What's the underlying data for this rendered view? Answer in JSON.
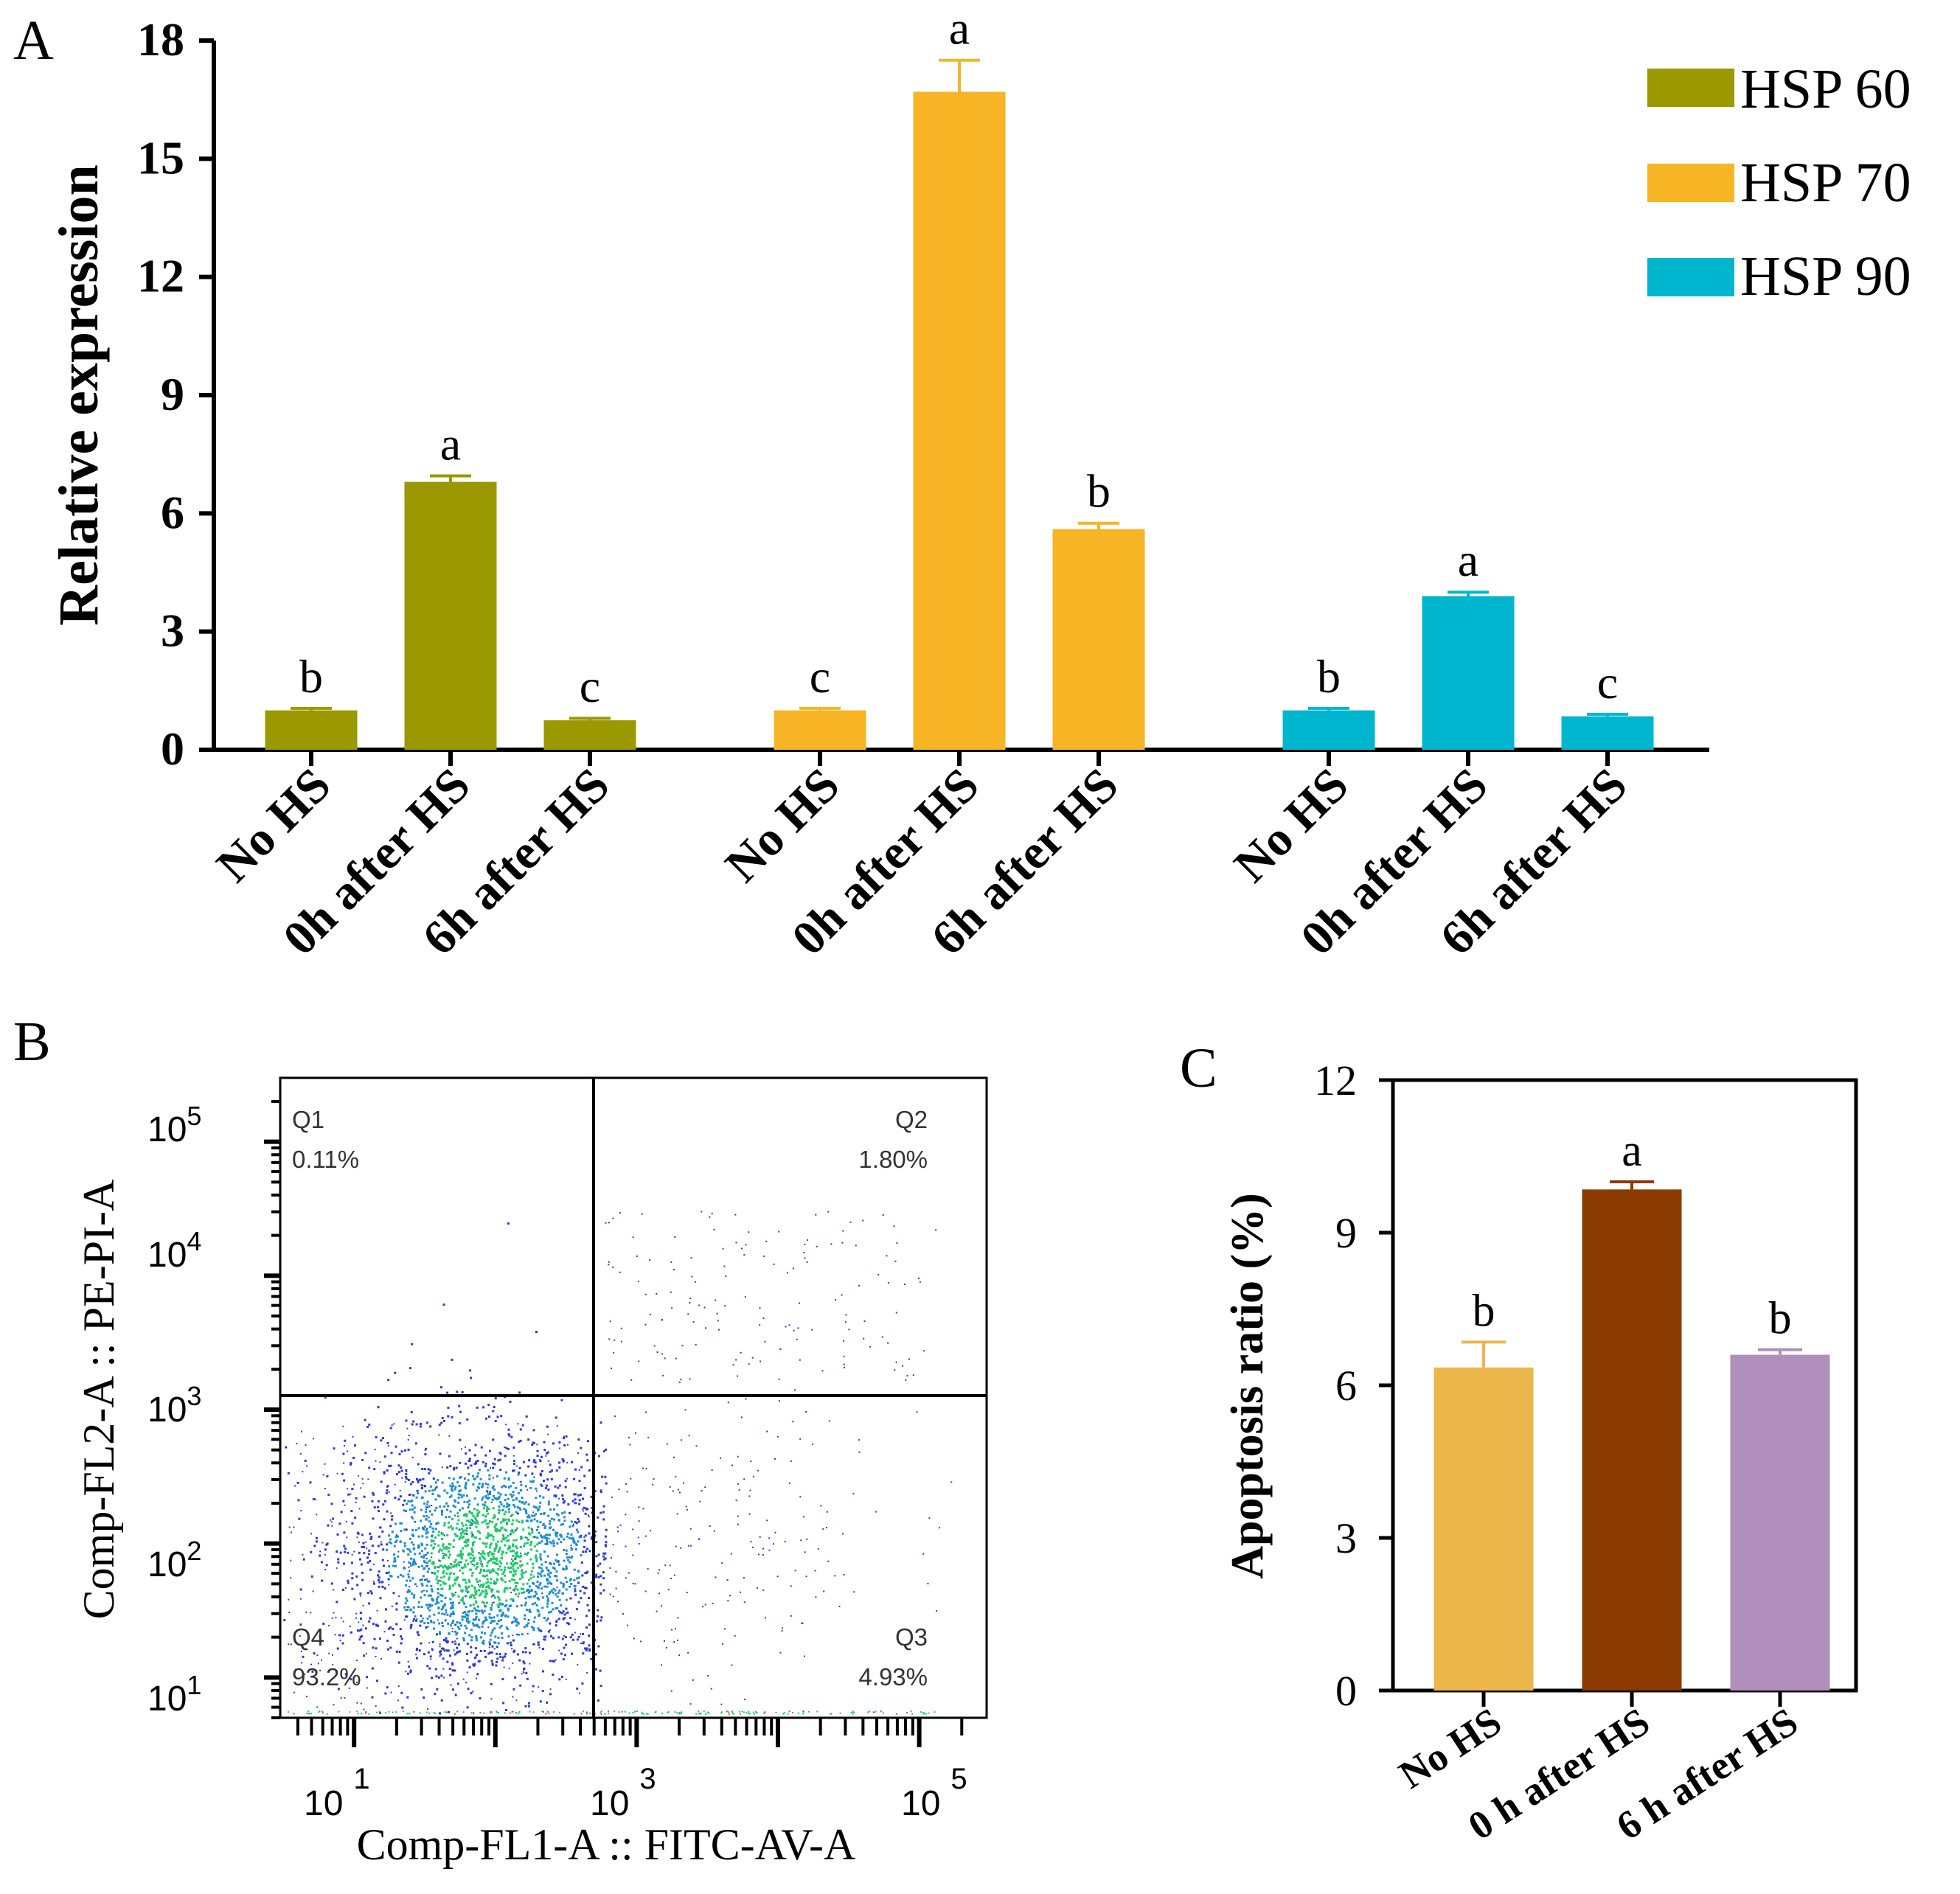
{
  "panels": {
    "A": "A",
    "B": "B",
    "C": "C"
  },
  "colors": {
    "hsp60": "#9a9900",
    "hsp70": "#f7b525",
    "hsp90": "#00b6ce",
    "no_hs": "#ecb64a",
    "h0": "#8b3a00",
    "h6": "#b08fbd",
    "axis": "#000000",
    "flow_dot": "#2b3bd6",
    "flow_dense": "#1ec96a"
  },
  "chart_data": [
    {
      "id": "A",
      "type": "bar",
      "title": "",
      "xlabel": "",
      "ylabel": "Relative expression",
      "ylim": [
        0,
        18
      ],
      "yticks": [
        0,
        3,
        6,
        9,
        12,
        15,
        18
      ],
      "grid": false,
      "legend_position": "top-right",
      "categories": [
        "No HS",
        "0h after HS",
        "6h after HS"
      ],
      "series": [
        {
          "name": "HSP 60",
          "values": [
            1.0,
            6.8,
            0.75
          ],
          "errors": [
            0.05,
            0.15,
            0.05
          ],
          "letters": [
            "b",
            "a",
            "c"
          ]
        },
        {
          "name": "HSP 70",
          "values": [
            1.0,
            16.7,
            5.6
          ],
          "errors": [
            0.05,
            0.8,
            0.15
          ],
          "letters": [
            "c",
            "a",
            "b"
          ]
        },
        {
          "name": "HSP 90",
          "values": [
            1.0,
            3.9,
            0.85
          ],
          "errors": [
            0.05,
            0.1,
            0.05
          ],
          "letters": [
            "b",
            "a",
            "c"
          ]
        }
      ]
    },
    {
      "id": "B",
      "type": "scatter",
      "title": "",
      "xlabel": "Comp-FL1-A :: FITC-AV-A",
      "ylabel": "Comp-FL2-A :: PE-PI-A",
      "x_scale": "log",
      "y_scale": "log",
      "xlim": [
        3,
        300000
      ],
      "ylim": [
        5,
        300000
      ],
      "x_ticks": [
        {
          "base": "10",
          "exp": "1"
        },
        {
          "base": "10",
          "exp": "3"
        },
        {
          "base": "10",
          "exp": "5"
        }
      ],
      "y_ticks": [
        {
          "base": "10",
          "exp": "5"
        },
        {
          "base": "10",
          "exp": "4"
        },
        {
          "base": "10",
          "exp": "3"
        },
        {
          "base": "10",
          "exp": "2"
        },
        {
          "base": "10",
          "exp": "1"
        }
      ],
      "gate": {
        "x": 600,
        "y": 1000
      },
      "quadrants": [
        {
          "name": "Q1",
          "value": "0.11%"
        },
        {
          "name": "Q2",
          "value": "1.80%"
        },
        {
          "name": "Q3",
          "value": "4.93%"
        },
        {
          "name": "Q4",
          "value": "93.2%"
        }
      ]
    },
    {
      "id": "C",
      "type": "bar",
      "title": "",
      "xlabel": "",
      "ylabel": "Apoptosis ratio (%)",
      "ylim": [
        0,
        12
      ],
      "yticks": [
        0,
        3,
        6,
        9,
        12
      ],
      "grid": false,
      "categories": [
        "No HS",
        "0 h after HS",
        "6 h after HS"
      ],
      "values": [
        6.35,
        9.85,
        6.6
      ],
      "errors": [
        0.5,
        0.15,
        0.1
      ],
      "letters": [
        "b",
        "a",
        "b"
      ]
    }
  ]
}
